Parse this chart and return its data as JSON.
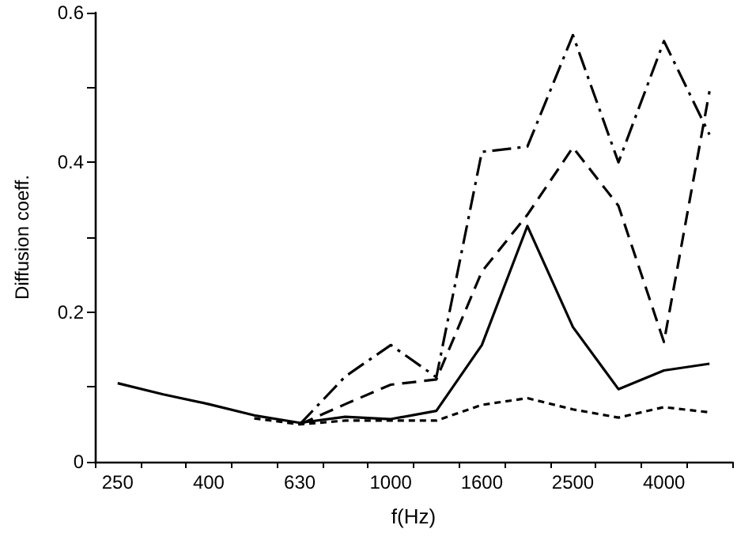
{
  "chart_data": {
    "type": "line",
    "xlabel": "f(Hz)",
    "ylabel": "Diffusion coeff.",
    "categories": [
      "250",
      null,
      "400",
      null,
      "630",
      null,
      "1000",
      null,
      "1600",
      null,
      "2500",
      null,
      "4000",
      null
    ],
    "series": [
      {
        "color": "#000000",
        "line_style": "solid",
        "values": [
          0.105,
          0.09,
          0.077,
          0.062,
          0.052,
          0.06,
          0.057,
          0.068,
          0.156,
          0.315,
          0.18,
          0.097,
          0.122,
          0.131
        ]
      },
      {
        "color": "#000000",
        "line_style": "dotted",
        "values": [
          null,
          null,
          null,
          0.058,
          0.05,
          0.055,
          0.055,
          0.055,
          0.076,
          0.085,
          0.07,
          0.059,
          0.073,
          0.066
        ]
      },
      {
        "color": "#000000",
        "line_style": "dashed",
        "values": [
          null,
          null,
          null,
          null,
          0.05,
          0.077,
          0.103,
          0.11,
          0.254,
          0.33,
          0.42,
          0.342,
          0.16,
          0.495
        ]
      },
      {
        "color": "#000000",
        "line_style": "dashdot",
        "values": [
          null,
          null,
          null,
          null,
          0.05,
          0.114,
          0.156,
          0.113,
          0.414,
          0.421,
          0.57,
          0.4,
          0.562,
          0.437
        ]
      }
    ],
    "ylim": [
      0,
      0.6
    ],
    "yticks": [
      0,
      {
        "value": 0.1,
        "label": null
      },
      0.2,
      {
        "value": 0.3,
        "label": null
      },
      0.4,
      {
        "value": 0.5,
        "label": null
      },
      0.6
    ],
    "grid": false,
    "marker": "none"
  }
}
